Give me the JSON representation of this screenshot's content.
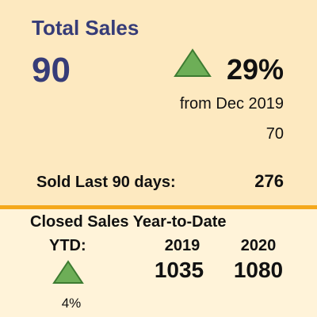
{
  "kpi": {
    "title": "Total Sales",
    "value": 90,
    "change": "29%",
    "comparison": "from Dec 2019",
    "previous": 70,
    "last90_label": "Sold Last 90 days:",
    "last90_value": 276
  },
  "ytd": {
    "title": "Closed Sales Year-to-Date",
    "label": "YTD:",
    "change": "4%",
    "years": [
      {
        "year": "2019",
        "value": 1035
      },
      {
        "year": "2020",
        "value": 1080
      }
    ]
  }
}
